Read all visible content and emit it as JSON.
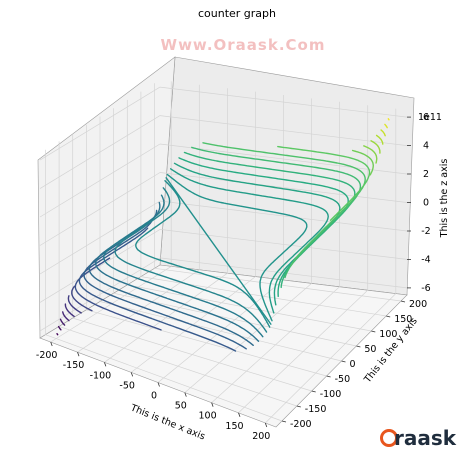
{
  "chart_data": {
    "type": "contour3d",
    "title": "counter graph",
    "watermark": "Www.Oraask.Com",
    "brand": "Oraask",
    "xlabel": "This is the x axis",
    "ylabel": "This is the y axis",
    "zlabel": "This is the z axis",
    "z_offset_label": "1e11",
    "xlim": [
      -220,
      220
    ],
    "ylim": [
      -220,
      220
    ],
    "zlim": [
      -6.5,
      6.5
    ],
    "xticks": [
      -200,
      -150,
      -100,
      -50,
      0,
      50,
      100,
      150,
      200
    ],
    "yticks": [
      -200,
      -150,
      -100,
      -50,
      0,
      50,
      100,
      150,
      200
    ],
    "zticks": [
      -6,
      -4,
      -2,
      0,
      2,
      4,
      6
    ],
    "surface": "z = x^5 + y^5 (contour lines drawn in 3D)",
    "contour_levels": 30,
    "colormap": "viridis",
    "grid": true
  },
  "colors": {
    "pane_back": "#ececec",
    "pane_side": "#f2f2f2",
    "pane_floor": "#f6f6f6",
    "grid": "#d4d4d4",
    "watermark": "#f2b6b6",
    "brand_accent": "#e8561e",
    "brand_text": "#1f2d3d"
  }
}
